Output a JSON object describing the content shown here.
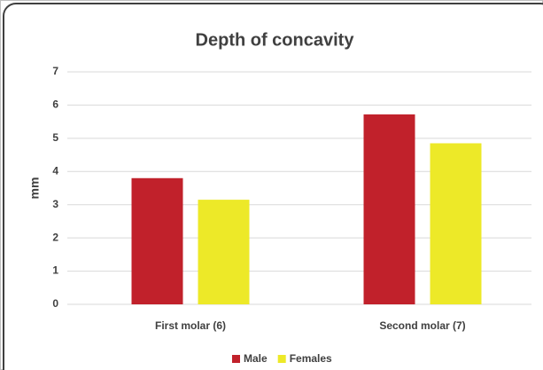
{
  "chart_data": {
    "type": "bar",
    "title": "Depth of concavity",
    "ylabel": "mm",
    "categories": [
      "First molar (6)",
      "Second molar (7)"
    ],
    "series": [
      {
        "name": "Male",
        "color": "#c1212b",
        "values": [
          3.8,
          5.72
        ]
      },
      {
        "name": "Females",
        "color": "#ede928",
        "values": [
          3.15,
          4.85
        ]
      }
    ],
    "ylim": [
      0,
      7
    ],
    "yticks": [
      0,
      1,
      2,
      3,
      4,
      5,
      6,
      7
    ],
    "grid": true,
    "legend": "bottom"
  }
}
